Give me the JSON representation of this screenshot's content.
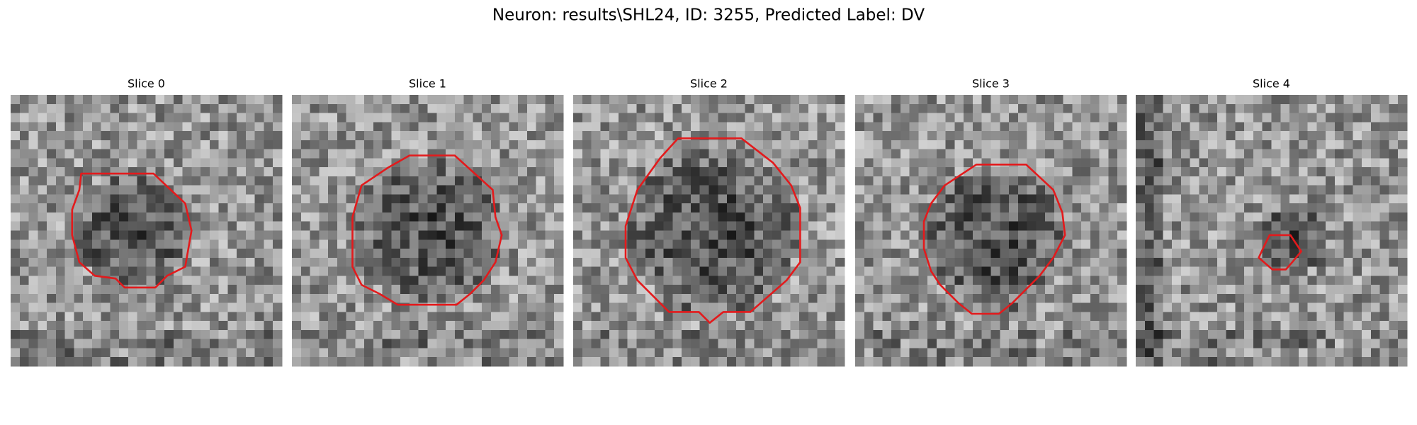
{
  "header": {
    "title": "Neuron: results\\SHL24, ID: 3255, Predicted Label: DV"
  },
  "panels": [
    {
      "title": "Slice 0"
    },
    {
      "title": "Slice 1"
    },
    {
      "title": "Slice 2"
    },
    {
      "title": "Slice 3"
    },
    {
      "title": "Slice 4"
    }
  ]
}
